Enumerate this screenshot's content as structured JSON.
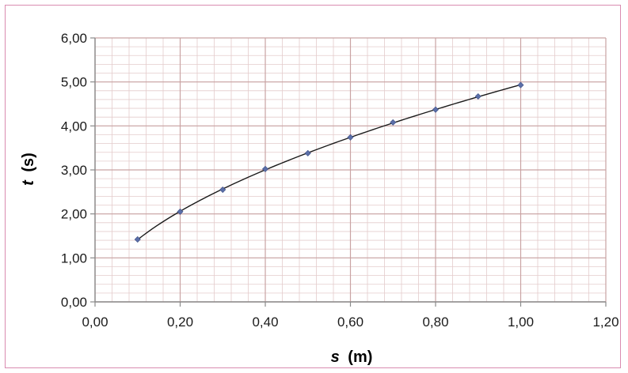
{
  "chart_data": {
    "type": "scatter",
    "title": "",
    "xlabel": {
      "var": "s",
      "unit": "(m)"
    },
    "ylabel": {
      "var": "t",
      "unit": "(s)"
    },
    "xlim": [
      0,
      1.2
    ],
    "ylim": [
      0,
      6
    ],
    "x_ticks": [
      0,
      0.2,
      0.4,
      0.6,
      0.8,
      1.0,
      1.2
    ],
    "y_ticks": [
      0,
      1,
      2,
      3,
      4,
      5,
      6
    ],
    "x_tick_labels": [
      "0,00",
      "0,20",
      "0,40",
      "0,60",
      "0,80",
      "1,00",
      "1,20"
    ],
    "y_tick_labels": [
      "0,00",
      "1,00",
      "2,00",
      "3,00",
      "4,00",
      "5,00",
      "6,00"
    ],
    "grid": true,
    "trendline": true,
    "series": [
      {
        "x": [
          0.1,
          0.2,
          0.3,
          0.4,
          0.5,
          0.6,
          0.7,
          0.8,
          0.9,
          1.0
        ],
        "y": [
          1.42,
          2.05,
          2.55,
          3.02,
          3.38,
          3.74,
          4.08,
          4.37,
          4.67,
          4.93
        ],
        "color": "#5b6fa8"
      }
    ],
    "frame_color": "#d98bb0",
    "grid_color": "#c9a3a3"
  }
}
